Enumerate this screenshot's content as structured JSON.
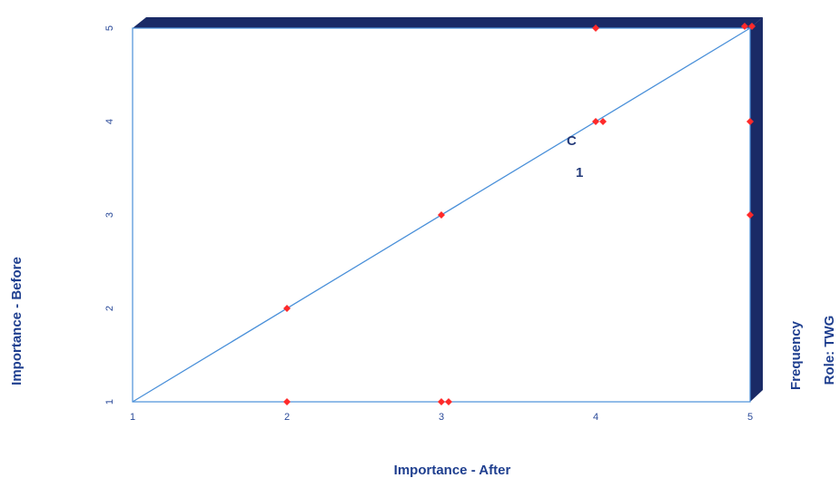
{
  "chart_data": {
    "type": "scatter",
    "xlabel": "Importance - After",
    "ylabel": "Importance - Before",
    "xlim": [
      1,
      5
    ],
    "ylim": [
      1,
      5
    ],
    "x_ticks": [
      "1",
      "2",
      "3",
      "4",
      "5"
    ],
    "y_ticks": [
      "1",
      "2",
      "3",
      "4",
      "5"
    ],
    "right_labels": [
      "Frequency",
      "Role: TWG"
    ],
    "annotations": [
      "C",
      "1"
    ],
    "reference_line": {
      "from": [
        1,
        1
      ],
      "to": [
        5,
        5
      ]
    },
    "points": [
      {
        "x": 2,
        "y": 1
      },
      {
        "x": 3,
        "y": 1
      },
      {
        "x": 3,
        "y": 1
      },
      {
        "x": 2,
        "y": 2
      },
      {
        "x": 3,
        "y": 3
      },
      {
        "x": 4,
        "y": 4
      },
      {
        "x": 4,
        "y": 4
      },
      {
        "x": 4,
        "y": 5
      },
      {
        "x": 5,
        "y": 3
      },
      {
        "x": 5,
        "y": 4
      },
      {
        "x": 5,
        "y": 5
      },
      {
        "x": 5,
        "y": 5
      }
    ],
    "colors": {
      "frame": "#1a2a66",
      "line": "#4a90d9",
      "point": "#ff2a2a",
      "text": "#1f3f8f"
    },
    "grid": false,
    "legend": "none"
  }
}
